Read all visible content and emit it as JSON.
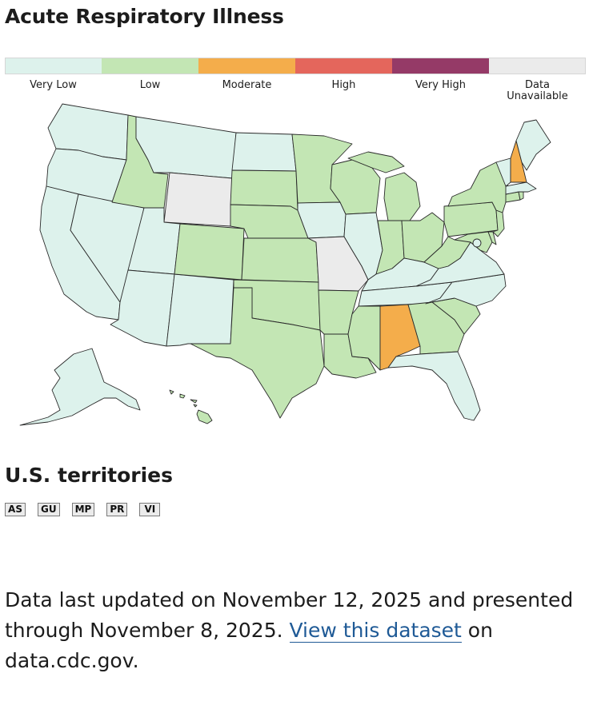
{
  "title": "Acute Respiratory Illness",
  "legend": [
    {
      "label": "Very Low",
      "color": "#ddf2ec"
    },
    {
      "label": "Low",
      "color": "#c3e6b4"
    },
    {
      "label": "Moderate",
      "color": "#f4ad4b"
    },
    {
      "label": "High",
      "color": "#e4665c"
    },
    {
      "label": "Very High",
      "color": "#953a67"
    },
    {
      "label": "Data\nUnavailable",
      "color": "#ebebeb"
    }
  ],
  "map": {
    "levels": {
      "WA": "Very Low",
      "OR": "Very Low",
      "CA": "Very Low",
      "NV": "Very Low",
      "ID": "Low",
      "MT": "Very Low",
      "WY": "Data Unavailable",
      "UT": "Very Low",
      "AZ": "Very Low",
      "NM": "Very Low",
      "CO": "Low",
      "ND": "Very Low",
      "SD": "Low",
      "NE": "Low",
      "KS": "Low",
      "OK": "Low",
      "TX": "Low",
      "MN": "Low",
      "IA": "Very Low",
      "MO": "Data Unavailable",
      "AR": "Low",
      "LA": "Low",
      "WI": "Low",
      "IL": "Very Low",
      "MI": "Low",
      "IN": "Low",
      "OH": "Low",
      "KY": "Very Low",
      "TN": "Very Low",
      "MS": "Low",
      "AL": "Moderate",
      "GA": "Low",
      "FL": "Very Low",
      "SC": "Low",
      "NC": "Very Low",
      "VA": "Very Low",
      "WV": "Low",
      "MD": "Low",
      "DE": "Low",
      "PA": "Low",
      "NJ": "Low",
      "NY": "Low",
      "CT": "Low",
      "RI": "Low",
      "MA": "Very Low",
      "VT": "Very Low",
      "NH": "Moderate",
      "ME": "Very Low",
      "DC": "Very Low",
      "AK": "Very Low",
      "HI": "Low"
    }
  },
  "territories": {
    "heading": "U.S. territories",
    "items": [
      {
        "code": "AS"
      },
      {
        "code": "GU"
      },
      {
        "code": "MP"
      },
      {
        "code": "PR"
      },
      {
        "code": "VI"
      }
    ]
  },
  "footer": {
    "text_before": "Data last updated on November 12, 2025 and presented through November 8, 2025. ",
    "link_text": "View this dataset",
    "text_after": " on data.cdc.gov."
  }
}
